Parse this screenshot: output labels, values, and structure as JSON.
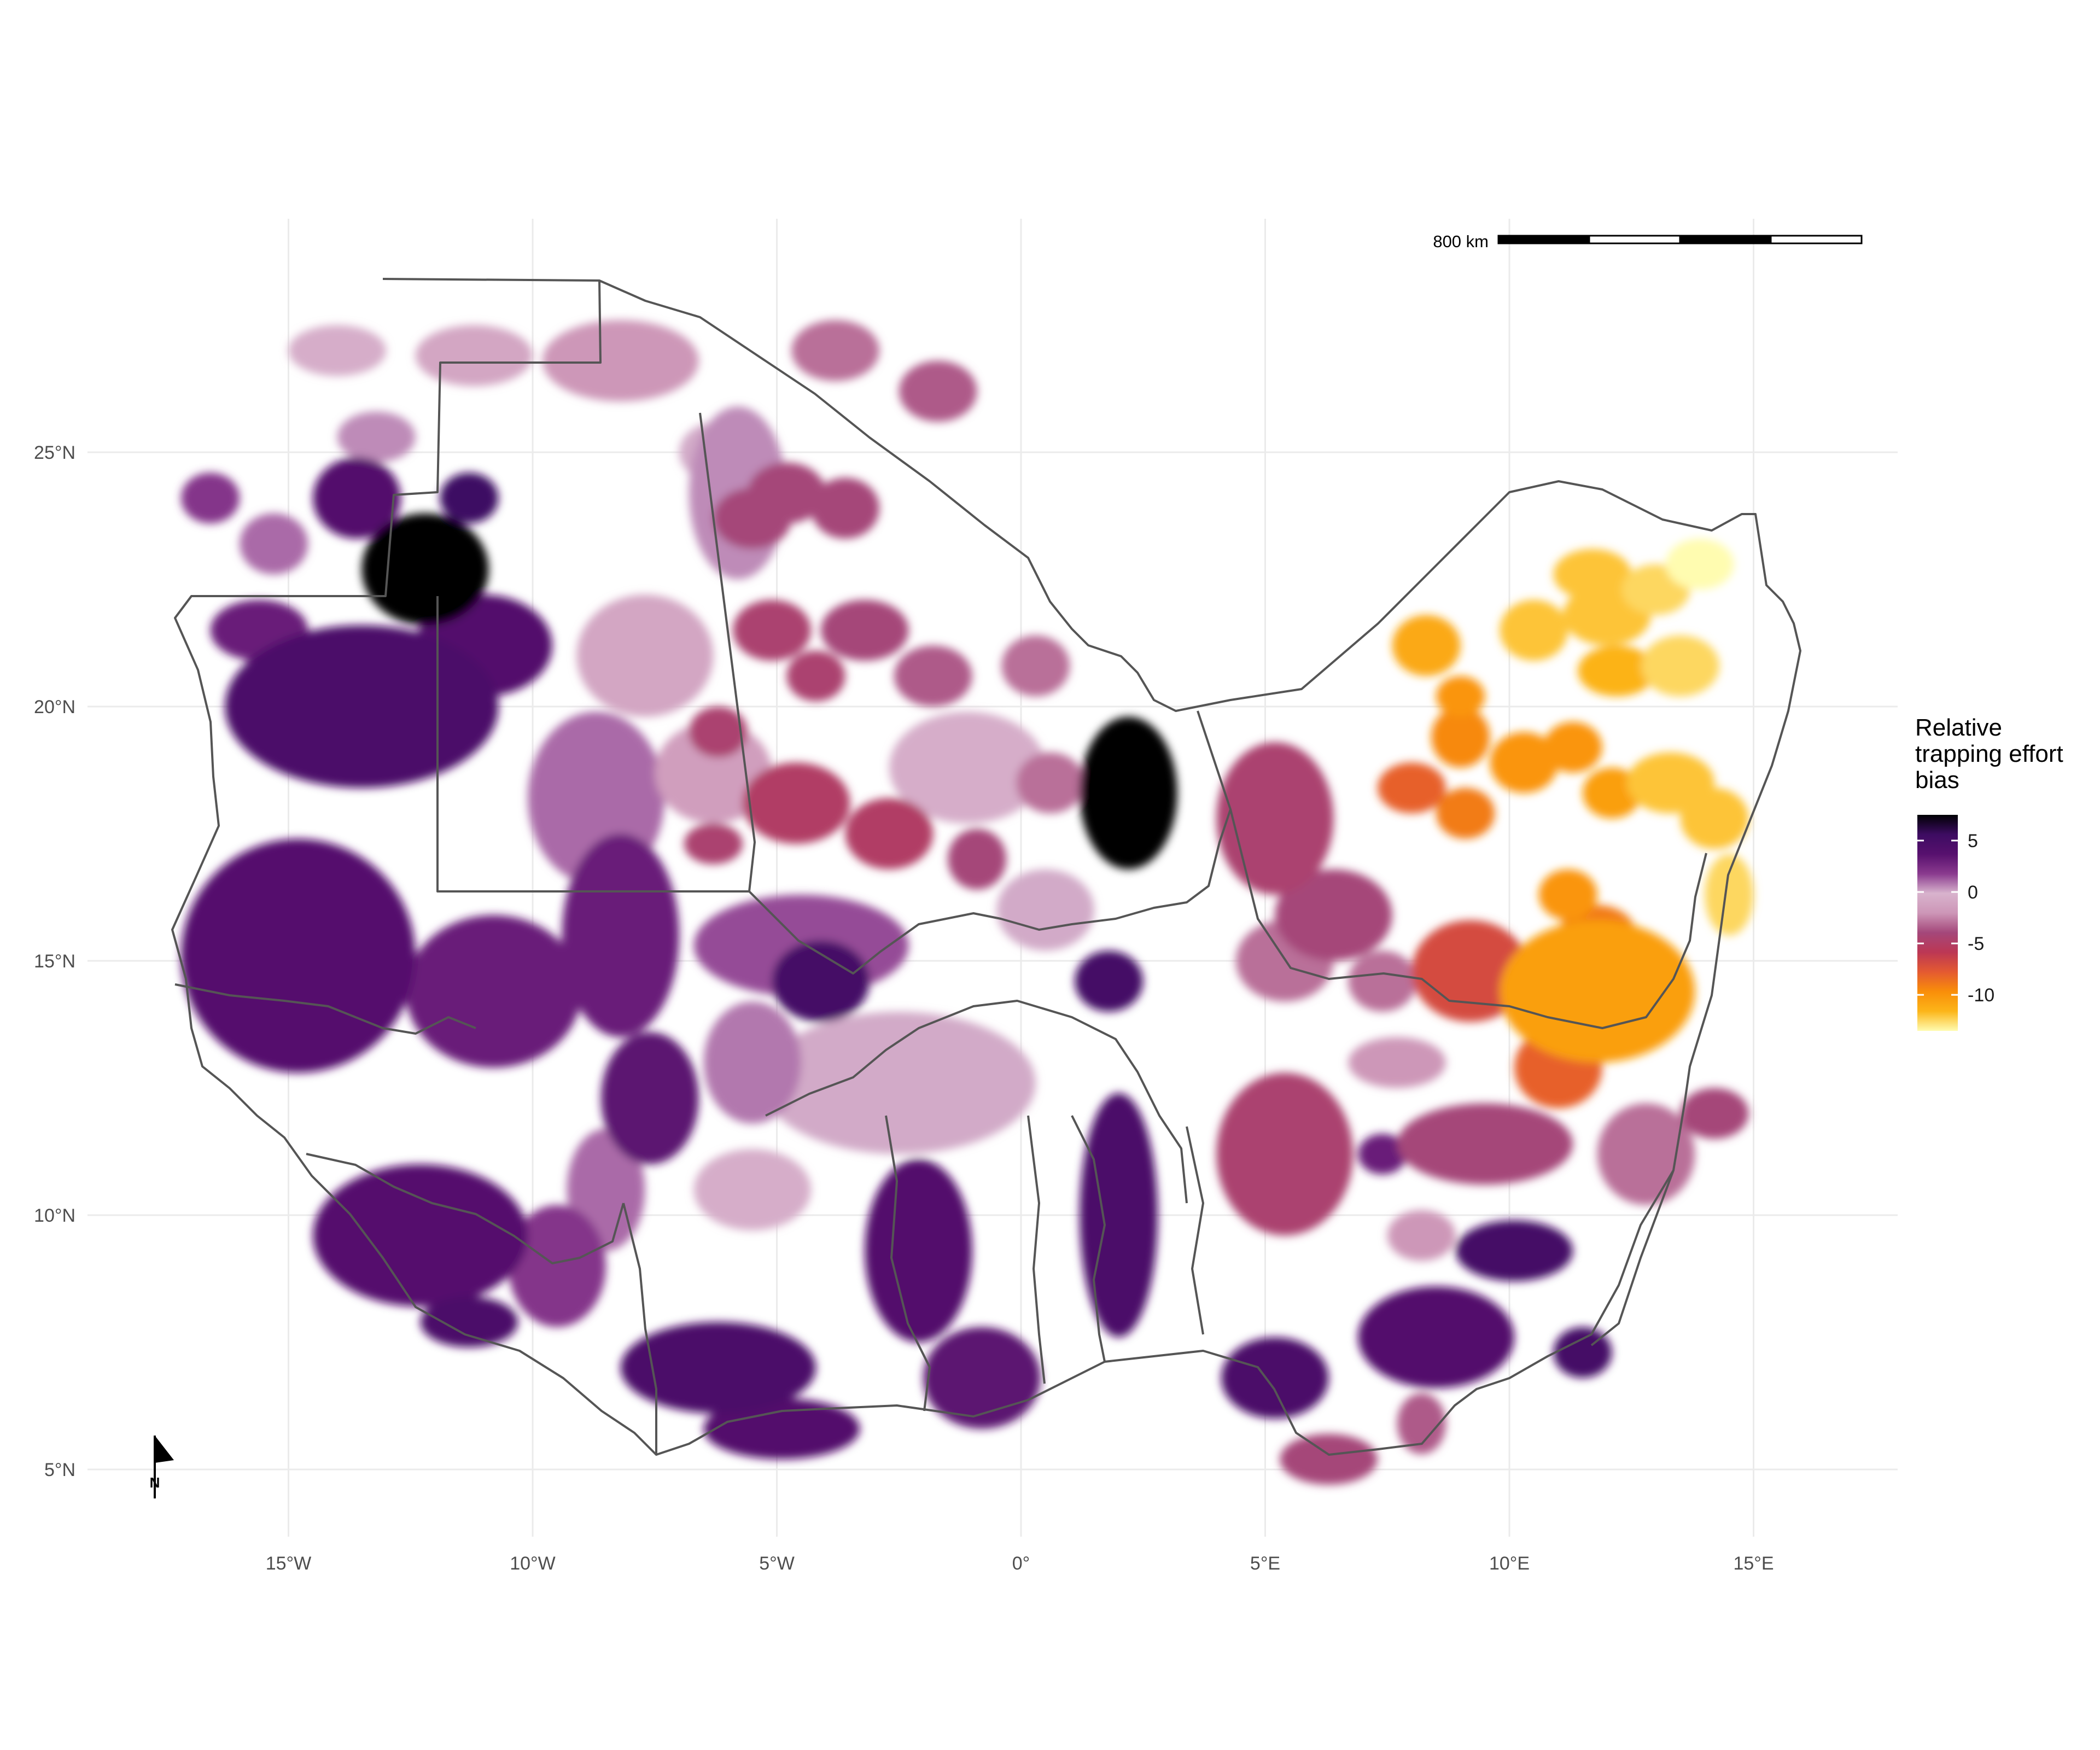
{
  "map": {
    "legend": {
      "title_lines": [
        "Relative",
        "trapping effort",
        "bias"
      ],
      "min": -13.5,
      "max": 7.5,
      "breaks": [
        {
          "value": 5,
          "label": "5"
        },
        {
          "value": 0,
          "label": "0"
        },
        {
          "value": -5,
          "label": "-5"
        },
        {
          "value": -10,
          "label": "-10"
        }
      ],
      "palette": [
        "#fffcb0",
        "#fcb519",
        "#f98e09",
        "#e45a31",
        "#bc3754",
        "#a4477a",
        "#cd96b7",
        "#d8b3cd",
        "#8a3a8e",
        "#57106e",
        "#3d0c62",
        "#000004"
      ]
    },
    "scale_bar": {
      "label": "800 km"
    },
    "north_arrow": {
      "label": "N"
    },
    "lon_axis": [
      {
        "value": -15,
        "label": "15°W"
      },
      {
        "value": -10,
        "label": "10°W"
      },
      {
        "value": -5,
        "label": "5°W"
      },
      {
        "value": 0,
        "label": "0°"
      },
      {
        "value": 5,
        "label": "5°E"
      },
      {
        "value": 10,
        "label": "10°E"
      },
      {
        "value": 15,
        "label": "15°E"
      }
    ],
    "lat_axis": [
      {
        "value": 25,
        "label": "25°N"
      },
      {
        "value": 20,
        "label": "20°N"
      },
      {
        "value": 15,
        "label": "15°N"
      },
      {
        "value": 10,
        "label": "10°N"
      },
      {
        "value": 5,
        "label": "5°N"
      }
    ],
    "bias_patches": [
      {
        "lon": -12.2,
        "lat": 22.7,
        "rx": 1.3,
        "ry": 1.1,
        "bias": 7.5
      },
      {
        "lon": 2.2,
        "lat": 18.3,
        "rx": 1.0,
        "ry": 1.5,
        "bias": 7.5
      },
      {
        "lon": -11.3,
        "lat": 24.1,
        "rx": 0.6,
        "ry": 0.5,
        "bias": 5.5
      },
      {
        "lon": -13.6,
        "lat": 24.1,
        "rx": 0.9,
        "ry": 0.8,
        "bias": 4.0
      },
      {
        "lon": -13.5,
        "lat": 20.0,
        "rx": 2.8,
        "ry": 1.6,
        "bias": 4.5
      },
      {
        "lon": -11.0,
        "lat": 21.2,
        "rx": 1.4,
        "ry": 1.0,
        "bias": 4.0
      },
      {
        "lon": -15.6,
        "lat": 21.5,
        "rx": 1.0,
        "ry": 0.6,
        "bias": 3.0
      },
      {
        "lon": -14.8,
        "lat": 15.1,
        "rx": 2.4,
        "ry": 2.3,
        "bias": 3.8
      },
      {
        "lon": -15.4,
        "lat": 14.8,
        "rx": 0.8,
        "ry": 0.7,
        "bias": 0.5
      },
      {
        "lon": -10.8,
        "lat": 14.4,
        "rx": 1.8,
        "ry": 1.5,
        "bias": 3.0
      },
      {
        "lon": -8.2,
        "lat": 15.5,
        "rx": 1.2,
        "ry": 2.0,
        "bias": 3.0
      },
      {
        "lon": -7.6,
        "lat": 12.3,
        "rx": 1.0,
        "ry": 1.3,
        "bias": 3.5
      },
      {
        "lon": -4.1,
        "lat": 14.6,
        "rx": 1.0,
        "ry": 0.8,
        "bias": 5.0
      },
      {
        "lon": -4.5,
        "lat": 15.3,
        "rx": 2.2,
        "ry": 1.0,
        "bias": 1.5
      },
      {
        "lon": -12.3,
        "lat": 9.6,
        "rx": 2.2,
        "ry": 1.4,
        "bias": 3.8
      },
      {
        "lon": -11.3,
        "lat": 7.9,
        "rx": 1.0,
        "ry": 0.5,
        "bias": 4.5
      },
      {
        "lon": -9.5,
        "lat": 9.0,
        "rx": 1.0,
        "ry": 1.2,
        "bias": 2.0
      },
      {
        "lon": -8.5,
        "lat": 10.5,
        "rx": 0.8,
        "ry": 1.2,
        "bias": 1.0
      },
      {
        "lon": -6.2,
        "lat": 7.0,
        "rx": 2.0,
        "ry": 0.9,
        "bias": 4.5
      },
      {
        "lon": -4.9,
        "lat": 5.8,
        "rx": 1.6,
        "ry": 0.6,
        "bias": 4.0
      },
      {
        "lon": -2.1,
        "lat": 9.3,
        "rx": 1.1,
        "ry": 1.8,
        "bias": 4.0
      },
      {
        "lon": -0.8,
        "lat": 6.8,
        "rx": 1.2,
        "ry": 1.0,
        "bias": 3.5
      },
      {
        "lon": 2.0,
        "lat": 10.0,
        "rx": 0.8,
        "ry": 2.4,
        "bias": 4.5
      },
      {
        "lon": 1.8,
        "lat": 14.6,
        "rx": 0.7,
        "ry": 0.6,
        "bias": 5.0
      },
      {
        "lon": 5.2,
        "lat": 6.8,
        "rx": 1.1,
        "ry": 0.8,
        "bias": 4.5
      },
      {
        "lon": 8.5,
        "lat": 7.6,
        "rx": 1.6,
        "ry": 1.0,
        "bias": 4.0
      },
      {
        "lon": 10.1,
        "lat": 9.3,
        "rx": 1.2,
        "ry": 0.6,
        "bias": 5.0
      },
      {
        "lon": 11.5,
        "lat": 7.3,
        "rx": 0.6,
        "ry": 0.5,
        "bias": 5.0
      },
      {
        "lon": 7.4,
        "lat": 11.2,
        "rx": 0.5,
        "ry": 0.4,
        "bias": 3.0
      },
      {
        "lon": -5.8,
        "lat": 24.2,
        "rx": 1.0,
        "ry": 1.7,
        "bias": 0.5
      },
      {
        "lon": -8.2,
        "lat": 26.8,
        "rx": 1.6,
        "ry": 0.8,
        "bias": -2.0
      },
      {
        "lon": -11.2,
        "lat": 26.9,
        "rx": 1.2,
        "ry": 0.6,
        "bias": -1.0
      },
      {
        "lon": -14.0,
        "lat": 27.0,
        "rx": 1.0,
        "ry": 0.5,
        "bias": -0.5
      },
      {
        "lon": -7.7,
        "lat": 21.0,
        "rx": 1.4,
        "ry": 1.2,
        "bias": -1.0
      },
      {
        "lon": -8.7,
        "lat": 18.2,
        "rx": 1.4,
        "ry": 1.7,
        "bias": 1.0
      },
      {
        "lon": -6.3,
        "lat": 18.7,
        "rx": 1.2,
        "ry": 1.0,
        "bias": -1.5
      },
      {
        "lon": -1.1,
        "lat": 18.8,
        "rx": 1.6,
        "ry": 1.1,
        "bias": -0.5
      },
      {
        "lon": -2.5,
        "lat": 12.6,
        "rx": 2.8,
        "ry": 1.4,
        "bias": 0.0
      },
      {
        "lon": 0.5,
        "lat": 16.0,
        "rx": 1.0,
        "ry": 0.8,
        "bias": 0.0
      },
      {
        "lon": -5.5,
        "lat": 10.5,
        "rx": 1.2,
        "ry": 0.8,
        "bias": -0.5
      },
      {
        "lon": -6.2,
        "lat": 25.0,
        "rx": 0.8,
        "ry": 0.6,
        "bias": 0.0
      },
      {
        "lon": -13.2,
        "lat": 25.3,
        "rx": 0.8,
        "ry": 0.5,
        "bias": 0.5
      },
      {
        "lon": -15.3,
        "lat": 23.2,
        "rx": 0.7,
        "ry": 0.6,
        "bias": 1.0
      },
      {
        "lon": -16.6,
        "lat": 24.1,
        "rx": 0.6,
        "ry": 0.5,
        "bias": 2.0
      },
      {
        "lon": -5.5,
        "lat": 13.0,
        "rx": 1.0,
        "ry": 1.2,
        "bias": 0.8
      },
      {
        "lon": -3.8,
        "lat": 27.0,
        "rx": 0.9,
        "ry": 0.6,
        "bias": -3.0
      },
      {
        "lon": -1.7,
        "lat": 26.2,
        "rx": 0.8,
        "ry": 0.6,
        "bias": -3.5
      },
      {
        "lon": -4.8,
        "lat": 24.2,
        "rx": 0.8,
        "ry": 0.6,
        "bias": -4.0
      },
      {
        "lon": -5.5,
        "lat": 23.7,
        "rx": 0.8,
        "ry": 0.6,
        "bias": -4.0
      },
      {
        "lon": -3.6,
        "lat": 23.9,
        "rx": 0.7,
        "ry": 0.6,
        "bias": -4.0
      },
      {
        "lon": -5.1,
        "lat": 21.5,
        "rx": 0.8,
        "ry": 0.6,
        "bias": -4.5
      },
      {
        "lon": -3.2,
        "lat": 21.5,
        "rx": 0.9,
        "ry": 0.6,
        "bias": -4.0
      },
      {
        "lon": -4.2,
        "lat": 20.6,
        "rx": 0.6,
        "ry": 0.5,
        "bias": -4.5
      },
      {
        "lon": -1.8,
        "lat": 20.6,
        "rx": 0.8,
        "ry": 0.6,
        "bias": -3.5
      },
      {
        "lon": 0.3,
        "lat": 20.8,
        "rx": 0.7,
        "ry": 0.6,
        "bias": -3.0
      },
      {
        "lon": -6.2,
        "lat": 19.5,
        "rx": 0.6,
        "ry": 0.5,
        "bias": -4.5
      },
      {
        "lon": -4.6,
        "lat": 18.1,
        "rx": 1.1,
        "ry": 0.8,
        "bias": -5.0
      },
      {
        "lon": -2.7,
        "lat": 17.5,
        "rx": 0.9,
        "ry": 0.7,
        "bias": -5.0
      },
      {
        "lon": -0.9,
        "lat": 17.0,
        "rx": 0.6,
        "ry": 0.6,
        "bias": -4.0
      },
      {
        "lon": -6.3,
        "lat": 17.3,
        "rx": 0.6,
        "ry": 0.4,
        "bias": -4.5
      },
      {
        "lon": 0.6,
        "lat": 18.5,
        "rx": 0.7,
        "ry": 0.6,
        "bias": -3.0
      },
      {
        "lon": 5.2,
        "lat": 17.8,
        "rx": 1.2,
        "ry": 1.5,
        "bias": -4.5
      },
      {
        "lon": 6.4,
        "lat": 15.9,
        "rx": 1.2,
        "ry": 0.9,
        "bias": -4.0
      },
      {
        "lon": 5.4,
        "lat": 15.0,
        "rx": 1.0,
        "ry": 0.8,
        "bias": -3.0
      },
      {
        "lon": 7.4,
        "lat": 14.6,
        "rx": 0.7,
        "ry": 0.6,
        "bias": -3.0
      },
      {
        "lon": 5.4,
        "lat": 11.2,
        "rx": 1.4,
        "ry": 1.6,
        "bias": -4.5
      },
      {
        "lon": 9.5,
        "lat": 11.4,
        "rx": 1.8,
        "ry": 0.8,
        "bias": -4.0
      },
      {
        "lon": 12.8,
        "lat": 11.2,
        "rx": 1.0,
        "ry": 1.0,
        "bias": -3.0
      },
      {
        "lon": 14.2,
        "lat": 12.0,
        "rx": 0.7,
        "ry": 0.5,
        "bias": -4.0
      },
      {
        "lon": 7.7,
        "lat": 13.0,
        "rx": 1.0,
        "ry": 0.5,
        "bias": -2.0
      },
      {
        "lon": 8.2,
        "lat": 9.6,
        "rx": 0.7,
        "ry": 0.5,
        "bias": -2.0
      },
      {
        "lon": 6.3,
        "lat": 5.2,
        "rx": 1.0,
        "ry": 0.5,
        "bias": -4.0
      },
      {
        "lon": 8.2,
        "lat": 5.9,
        "rx": 0.5,
        "ry": 0.6,
        "bias": -3.5
      },
      {
        "lon": 9.2,
        "lat": 14.8,
        "rx": 1.2,
        "ry": 1.0,
        "bias": -7.0
      },
      {
        "lon": 11.8,
        "lat": 14.4,
        "rx": 2.0,
        "ry": 1.4,
        "bias": -10.5
      },
      {
        "lon": 11.0,
        "lat": 12.9,
        "rx": 0.9,
        "ry": 0.8,
        "bias": -8.0
      },
      {
        "lon": 11.2,
        "lat": 16.3,
        "rx": 0.6,
        "ry": 0.5,
        "bias": -10.0
      },
      {
        "lon": 11.8,
        "lat": 15.5,
        "rx": 0.8,
        "ry": 0.6,
        "bias": -9.0
      },
      {
        "lon": 8.0,
        "lat": 18.4,
        "rx": 0.7,
        "ry": 0.5,
        "bias": -8.0
      },
      {
        "lon": 9.1,
        "lat": 17.9,
        "rx": 0.6,
        "ry": 0.5,
        "bias": -9.0
      },
      {
        "lon": 9.0,
        "lat": 19.4,
        "rx": 0.6,
        "ry": 0.6,
        "bias": -9.5
      },
      {
        "lon": 10.3,
        "lat": 18.9,
        "rx": 0.7,
        "ry": 0.6,
        "bias": -10.0
      },
      {
        "lon": 11.3,
        "lat": 19.2,
        "rx": 0.6,
        "ry": 0.5,
        "bias": -10.0
      },
      {
        "lon": 12.1,
        "lat": 18.3,
        "rx": 0.6,
        "ry": 0.5,
        "bias": -10.5
      },
      {
        "lon": 9.0,
        "lat": 20.2,
        "rx": 0.5,
        "ry": 0.4,
        "bias": -10.0
      },
      {
        "lon": 8.3,
        "lat": 21.2,
        "rx": 0.7,
        "ry": 0.6,
        "bias": -11.0
      },
      {
        "lon": 10.5,
        "lat": 21.5,
        "rx": 0.7,
        "ry": 0.6,
        "bias": -12.0
      },
      {
        "lon": 12.0,
        "lat": 21.8,
        "rx": 0.9,
        "ry": 0.6,
        "bias": -12.0
      },
      {
        "lon": 12.2,
        "lat": 20.7,
        "rx": 0.8,
        "ry": 0.5,
        "bias": -11.5
      },
      {
        "lon": 13.5,
        "lat": 20.8,
        "rx": 0.8,
        "ry": 0.6,
        "bias": -12.5
      },
      {
        "lon": 11.7,
        "lat": 22.6,
        "rx": 0.8,
        "ry": 0.5,
        "bias": -12.0
      },
      {
        "lon": 13.0,
        "lat": 22.3,
        "rx": 0.7,
        "ry": 0.5,
        "bias": -12.5
      },
      {
        "lon": 13.9,
        "lat": 22.8,
        "rx": 0.7,
        "ry": 0.5,
        "bias": -13.5
      },
      {
        "lon": 13.3,
        "lat": 18.5,
        "rx": 0.9,
        "ry": 0.6,
        "bias": -12.0
      },
      {
        "lon": 14.2,
        "lat": 17.8,
        "rx": 0.7,
        "ry": 0.6,
        "bias": -12.0
      },
      {
        "lon": 14.5,
        "lat": 16.3,
        "rx": 0.5,
        "ry": 0.8,
        "bias": -12.5
      }
    ]
  }
}
